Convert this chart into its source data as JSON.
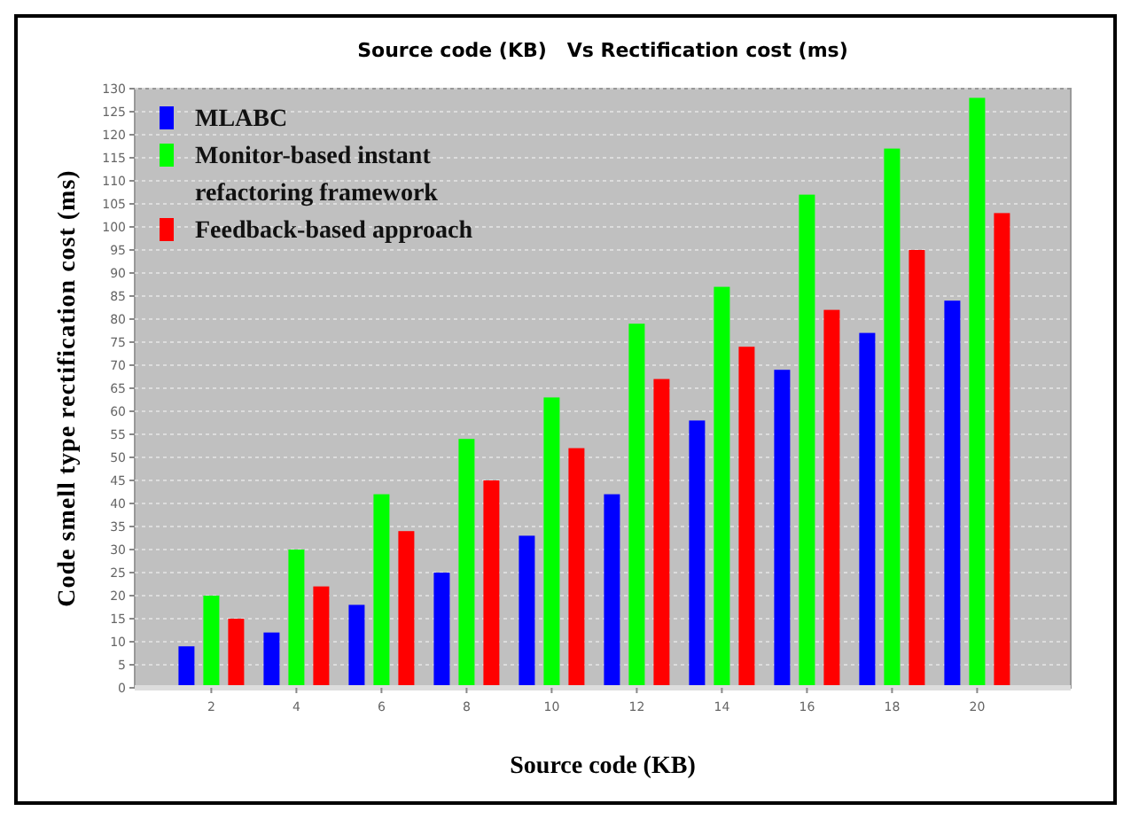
{
  "chart_data": {
    "type": "bar",
    "title": "Source code (KB)   Vs Rectification cost (ms)",
    "xlabel": "Source code (KB)",
    "ylabel": "Code smell type rectification cost (ms)",
    "x": [
      2,
      4,
      6,
      8,
      10,
      12,
      14,
      16,
      18,
      20
    ],
    "xlim": [
      0.2,
      22.2
    ],
    "xticks": [
      2,
      4,
      6,
      8,
      10,
      12,
      14,
      16,
      18,
      20
    ],
    "ylim": [
      0,
      130
    ],
    "yticks": [
      0,
      5,
      10,
      15,
      20,
      25,
      30,
      35,
      40,
      45,
      50,
      55,
      60,
      65,
      70,
      75,
      80,
      85,
      90,
      95,
      100,
      105,
      110,
      115,
      120,
      125,
      130
    ],
    "grid": "y",
    "legend": "top left",
    "series": [
      {
        "name": "MLABC",
        "color": "#0000ff",
        "values": [
          9,
          12,
          18,
          25,
          33,
          42,
          58,
          69,
          77,
          84
        ]
      },
      {
        "name": "Monitor-based instant refactoring framework",
        "color": "#00ff00",
        "values": [
          20,
          30,
          42,
          54,
          63,
          79,
          87,
          107,
          117,
          128
        ]
      },
      {
        "name": "Feedback-based approach",
        "color": "#ff0000",
        "values": [
          15,
          22,
          34,
          45,
          52,
          67,
          74,
          82,
          95,
          103
        ]
      }
    ]
  }
}
